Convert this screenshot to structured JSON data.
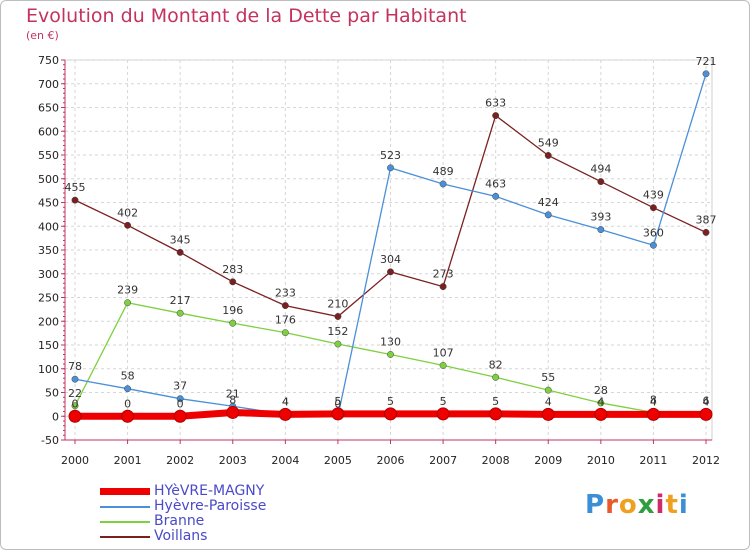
{
  "chart_data": {
    "type": "line",
    "title": "Evolution du Montant de la Dette par Habitant",
    "unit": "(en €)",
    "x": [
      "2000",
      "2001",
      "2002",
      "2003",
      "2004",
      "2005",
      "2006",
      "2007",
      "2008",
      "2009",
      "2010",
      "2011",
      "2012"
    ],
    "ylim": [
      -50,
      750
    ],
    "yticks": [
      -50,
      0,
      50,
      100,
      150,
      200,
      250,
      300,
      350,
      400,
      450,
      500,
      550,
      600,
      650,
      700,
      750
    ],
    "grid": true,
    "legend_position": "bottom-left",
    "series": [
      {
        "name": "HYèVRE-MAGNY",
        "color": "#ee0000",
        "values": [
          0,
          0,
          0,
          8,
          4,
          5,
          5,
          5,
          5,
          4,
          4,
          4,
          4
        ],
        "labels": [
          "0",
          "0",
          "0",
          "8",
          "4",
          "5",
          "5",
          "5",
          "5",
          "4",
          "4",
          "4",
          "4"
        ]
      },
      {
        "name": "Hyèvre-Paroisse",
        "color": "#4a90d9",
        "values": [
          78,
          58,
          37,
          21,
          4,
          0,
          523,
          489,
          463,
          424,
          393,
          360,
          721
        ],
        "labels": [
          "78",
          "58",
          "37",
          "21",
          "4",
          "0",
          "523",
          "489",
          "463",
          "424",
          "393",
          "360",
          "721"
        ]
      },
      {
        "name": "Branne",
        "color": "#7ed040",
        "values": [
          22,
          239,
          217,
          196,
          176,
          152,
          130,
          107,
          82,
          55,
          28,
          8,
          6
        ],
        "labels": [
          "22",
          "239",
          "217",
          "196",
          "176",
          "152",
          "130",
          "107",
          "82",
          "55",
          "28",
          "8",
          "6"
        ]
      },
      {
        "name": "Voillans",
        "color": "#7b2020",
        "values": [
          455,
          402,
          345,
          283,
          233,
          210,
          304,
          273,
          633,
          549,
          494,
          439,
          387
        ],
        "labels": [
          "455",
          "402",
          "345",
          "283",
          "233",
          "210",
          "304",
          "273",
          "633",
          "549",
          "494",
          "439",
          "387"
        ]
      }
    ]
  },
  "logo": {
    "letters": [
      "P",
      "r",
      "o",
      "x",
      "i",
      "t",
      "i"
    ],
    "colors": [
      "#3b8fd6",
      "#e85a2a",
      "#f0a020",
      "#2e9e3e",
      "#d02a6a",
      "#f0a020",
      "#3b8fd6"
    ]
  }
}
